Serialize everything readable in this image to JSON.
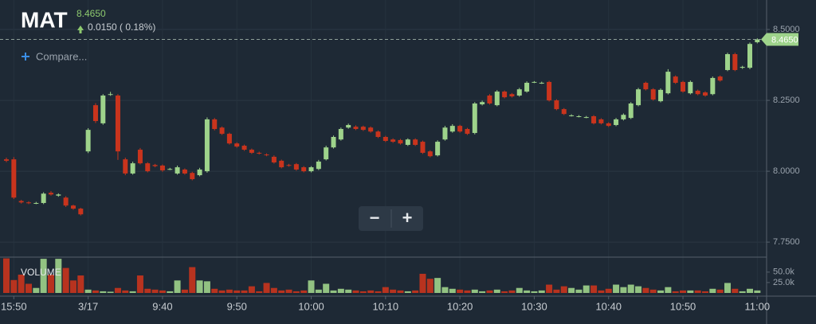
{
  "header": {
    "symbol": "MAT",
    "change": "0.0150 ( 0.18%)"
  },
  "controls": {
    "compare": "Compare...",
    "zoom_out": "−",
    "zoom_in": "+"
  },
  "chart_data": {
    "type": "candlestick",
    "grid": true,
    "up_color": "#9ed38b",
    "down_color": "#c9341d",
    "categories": [
      null,
      "15:50",
      null,
      null,
      null,
      null,
      null,
      null,
      null,
      null,
      null,
      "3/17",
      null,
      null,
      null,
      null,
      null,
      null,
      null,
      null,
      null,
      "9:40",
      null,
      null,
      null,
      null,
      null,
      null,
      null,
      null,
      null,
      "9:50",
      null,
      null,
      null,
      null,
      null,
      null,
      null,
      null,
      null,
      "10:00",
      null,
      null,
      null,
      null,
      null,
      null,
      null,
      null,
      null,
      "10:10",
      null,
      null,
      null,
      null,
      null,
      null,
      null,
      null,
      null,
      "10:20",
      null,
      null,
      null,
      null,
      null,
      null,
      null,
      null,
      null,
      "10:30",
      null,
      null,
      null,
      null,
      null,
      null,
      null,
      null,
      null,
      "10:40",
      null,
      null,
      null,
      null,
      null,
      null,
      null,
      null,
      null,
      "10:50",
      null,
      null,
      null,
      null,
      null,
      null,
      null,
      null,
      null,
      "11:00"
    ],
    "open": [
      8.042,
      8.042,
      7.895,
      7.89,
      7.888,
      7.888,
      7.924,
      7.914,
      7.907,
      7.879,
      7.868,
      8.07,
      8.233,
      8.169,
      8.272,
      8.267,
      8.042,
      7.992,
      8.076,
      8.028,
      8.022,
      8.02,
      8.008,
      7.992,
      8.006,
      7.994,
      7.986,
      8.0,
      8.183,
      8.154,
      8.132,
      8.098,
      8.09,
      8.076,
      8.065,
      8.059,
      8.051,
      8.037,
      8.022,
      8.025,
      8.014,
      8.0,
      8.008,
      8.042,
      8.084,
      8.112,
      8.154,
      8.157,
      8.157,
      8.154,
      8.14,
      8.121,
      8.112,
      8.11,
      8.093,
      8.112,
      8.104,
      8.07,
      8.056,
      8.112,
      8.14,
      8.16,
      8.149,
      8.135,
      8.236,
      8.267,
      8.233,
      8.281,
      8.272,
      8.267,
      8.281,
      8.315,
      8.312,
      8.315,
      8.25,
      8.219,
      8.197,
      8.194,
      8.191,
      8.194,
      8.183,
      8.169,
      8.163,
      8.183,
      8.188,
      8.233,
      8.312,
      8.289,
      8.247,
      8.275,
      8.334,
      8.315,
      8.275,
      8.284,
      8.278,
      8.272,
      8.334,
      8.357,
      8.413,
      8.365,
      8.365,
      8.455
    ],
    "high": [
      8.048,
      8.05,
      7.899,
      7.894,
      7.892,
      7.926,
      7.93,
      7.922,
      7.912,
      7.882,
      7.871,
      8.152,
      8.24,
      8.272,
      8.28,
      8.272,
      8.048,
      8.034,
      8.082,
      8.032,
      8.026,
      8.024,
      8.012,
      8.02,
      8.01,
      7.998,
      8.012,
      8.19,
      8.188,
      8.158,
      8.136,
      8.102,
      8.094,
      8.08,
      8.069,
      8.063,
      8.056,
      8.041,
      8.026,
      8.029,
      8.018,
      8.018,
      8.04,
      8.09,
      8.126,
      8.154,
      8.168,
      8.162,
      8.161,
      8.158,
      8.144,
      8.125,
      8.116,
      8.114,
      8.116,
      8.116,
      8.108,
      8.074,
      8.109,
      8.16,
      8.166,
      8.164,
      8.153,
      8.244,
      8.249,
      8.272,
      8.286,
      8.285,
      8.276,
      8.294,
      8.317,
      8.318,
      8.316,
      8.319,
      8.254,
      8.223,
      8.201,
      8.198,
      8.195,
      8.198,
      8.187,
      8.173,
      8.188,
      8.204,
      8.244,
      8.294,
      8.316,
      8.293,
      8.292,
      8.36,
      8.338,
      8.319,
      8.32,
      8.288,
      8.282,
      8.334,
      8.338,
      8.418,
      8.418,
      8.372,
      8.454,
      8.469
    ],
    "low": [
      8.032,
      7.902,
      7.886,
      7.884,
      7.884,
      7.884,
      7.914,
      7.91,
      7.874,
      7.864,
      7.844,
      8.064,
      8.17,
      8.164,
      8.266,
      8.04,
      7.986,
      7.988,
      8.024,
      7.996,
      8.014,
      7.998,
      8.004,
      7.988,
      7.988,
      7.968,
      7.982,
      7.995,
      8.144,
      8.128,
      8.094,
      8.083,
      8.072,
      8.061,
      8.059,
      8.053,
      8.027,
      8.01,
      8.016,
      8.002,
      7.996,
      7.996,
      8.004,
      8.038,
      8.08,
      8.108,
      8.15,
      8.145,
      8.142,
      8.136,
      8.117,
      8.103,
      8.1,
      8.094,
      8.089,
      8.089,
      8.061,
      8.049,
      8.052,
      8.108,
      8.136,
      8.136,
      8.128,
      8.13,
      8.232,
      8.235,
      8.229,
      8.257,
      8.26,
      8.263,
      8.277,
      8.311,
      8.308,
      8.246,
      8.215,
      8.198,
      8.193,
      8.19,
      8.187,
      8.165,
      8.165,
      8.156,
      8.159,
      8.179,
      8.184,
      8.229,
      8.285,
      8.249,
      8.243,
      8.271,
      8.308,
      8.277,
      8.271,
      8.268,
      8.263,
      8.268,
      8.316,
      8.353,
      8.353,
      8.361,
      8.36,
      8.451
    ],
    "close": [
      8.037,
      7.907,
      7.89,
      7.888,
      7.888,
      7.921,
      7.918,
      7.918,
      7.879,
      7.868,
      7.848,
      8.146,
      8.177,
      8.267,
      8.272,
      8.07,
      7.992,
      8.028,
      8.028,
      8.0,
      8.018,
      8.003,
      8.008,
      8.014,
      7.992,
      7.972,
      8.006,
      8.183,
      8.149,
      8.132,
      8.098,
      8.087,
      8.076,
      8.065,
      8.063,
      8.057,
      8.031,
      8.014,
      8.02,
      8.006,
      8.0,
      8.014,
      8.034,
      8.084,
      8.121,
      8.149,
      8.163,
      8.149,
      8.146,
      8.14,
      8.121,
      8.107,
      8.104,
      8.098,
      8.112,
      8.093,
      8.065,
      8.053,
      8.104,
      8.154,
      8.16,
      8.14,
      8.132,
      8.239,
      8.244,
      8.239,
      8.281,
      8.261,
      8.264,
      8.289,
      8.312,
      8.315,
      8.312,
      8.25,
      8.219,
      8.202,
      8.197,
      8.194,
      8.191,
      8.169,
      8.169,
      8.16,
      8.183,
      8.199,
      8.239,
      8.289,
      8.289,
      8.253,
      8.287,
      8.351,
      8.312,
      8.281,
      8.315,
      8.272,
      8.267,
      8.329,
      8.32,
      8.413,
      8.357,
      8.368,
      8.449,
      8.465
    ],
    "ylim": [
      7.697,
      8.604
    ],
    "yticks": [
      {
        "value": 7.75,
        "label": "7.7500"
      },
      {
        "value": 8.0,
        "label": "8.0000"
      },
      {
        "value": 8.25,
        "label": "8.2500"
      },
      {
        "value": 8.5,
        "label": "8.5000"
      }
    ],
    "price_line": {
      "value": 8.465,
      "label": "8.4650"
    },
    "volume": {
      "label": "VOLUME",
      "values": [
        83000,
        31000,
        44000,
        22000,
        12000,
        82000,
        44000,
        82000,
        60000,
        30000,
        42000,
        8000,
        6000,
        4000,
        3000,
        12000,
        6000,
        4000,
        42000,
        10000,
        8000,
        6000,
        4000,
        30000,
        8000,
        62000,
        30000,
        28000,
        10000,
        6000,
        8000,
        6000,
        6000,
        16000,
        4000,
        24000,
        12000,
        6000,
        8000,
        4000,
        6000,
        30000,
        8000,
        22000,
        6000,
        10000,
        8000,
        6000,
        4000,
        6000,
        4000,
        14000,
        8000,
        6000,
        4000,
        6000,
        46000,
        34000,
        36000,
        14000,
        10000,
        8000,
        6000,
        8000,
        4000,
        6000,
        8000,
        4000,
        6000,
        12000,
        6000,
        4000,
        6000,
        20000,
        8000,
        16000,
        12000,
        8000,
        18000,
        18000,
        6000,
        10000,
        20000,
        14000,
        20000,
        16000,
        12000,
        8000,
        6000,
        14000,
        4000,
        6000,
        6000,
        6000,
        4000,
        10000,
        8000,
        24000,
        10000,
        4000,
        10000,
        6000
      ],
      "ylim": [
        0,
        86000
      ],
      "yticks": [
        {
          "value": 25000,
          "label": "25.0k"
        },
        {
          "value": 50000,
          "label": "50.0k"
        }
      ]
    }
  }
}
